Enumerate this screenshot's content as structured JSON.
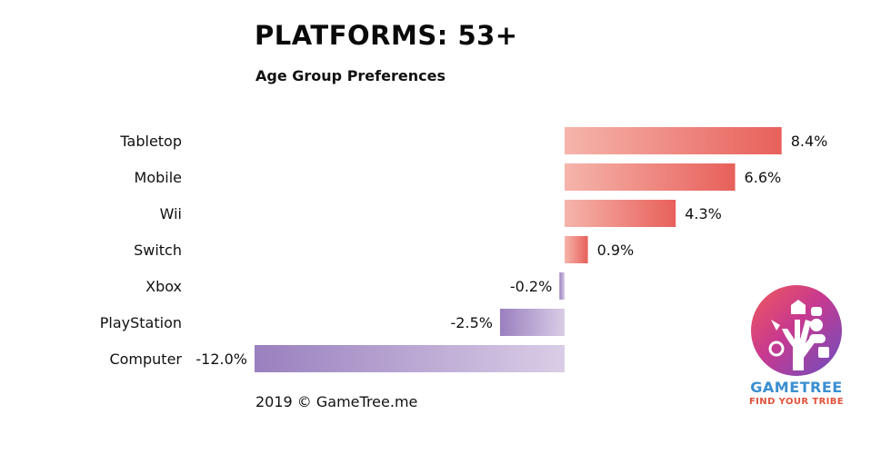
{
  "header": {
    "title": "PLATFORMS: 53+",
    "subtitle": "Age Group Preferences"
  },
  "footer": {
    "credit": "2019 © GameTree.me"
  },
  "logo": {
    "name": "GAMETREE",
    "tagline": "FIND YOUR TRIBE"
  },
  "colors": {
    "positive_light": "#f5b5ab",
    "positive_dark": "#e8605b",
    "negative_light": "#d9cde6",
    "negative_dark": "#9a80bf"
  },
  "chart_data": {
    "type": "bar",
    "orientation": "horizontal",
    "title": "PLATFORMS: 53+",
    "subtitle": "Age Group Preferences",
    "categories": [
      "Tabletop",
      "Mobile",
      "Wii",
      "Switch",
      "Xbox",
      "PlayStation",
      "Computer"
    ],
    "values": [
      8.4,
      6.6,
      4.3,
      0.9,
      -0.2,
      -2.5,
      -12.0
    ],
    "value_labels": [
      "8.4%",
      "6.6%",
      "4.3%",
      "0.9%",
      "-0.2%",
      "-2.5%",
      "-12.0%"
    ],
    "xlim": [
      -12.0,
      8.4
    ],
    "grid": false,
    "legend": "none"
  }
}
